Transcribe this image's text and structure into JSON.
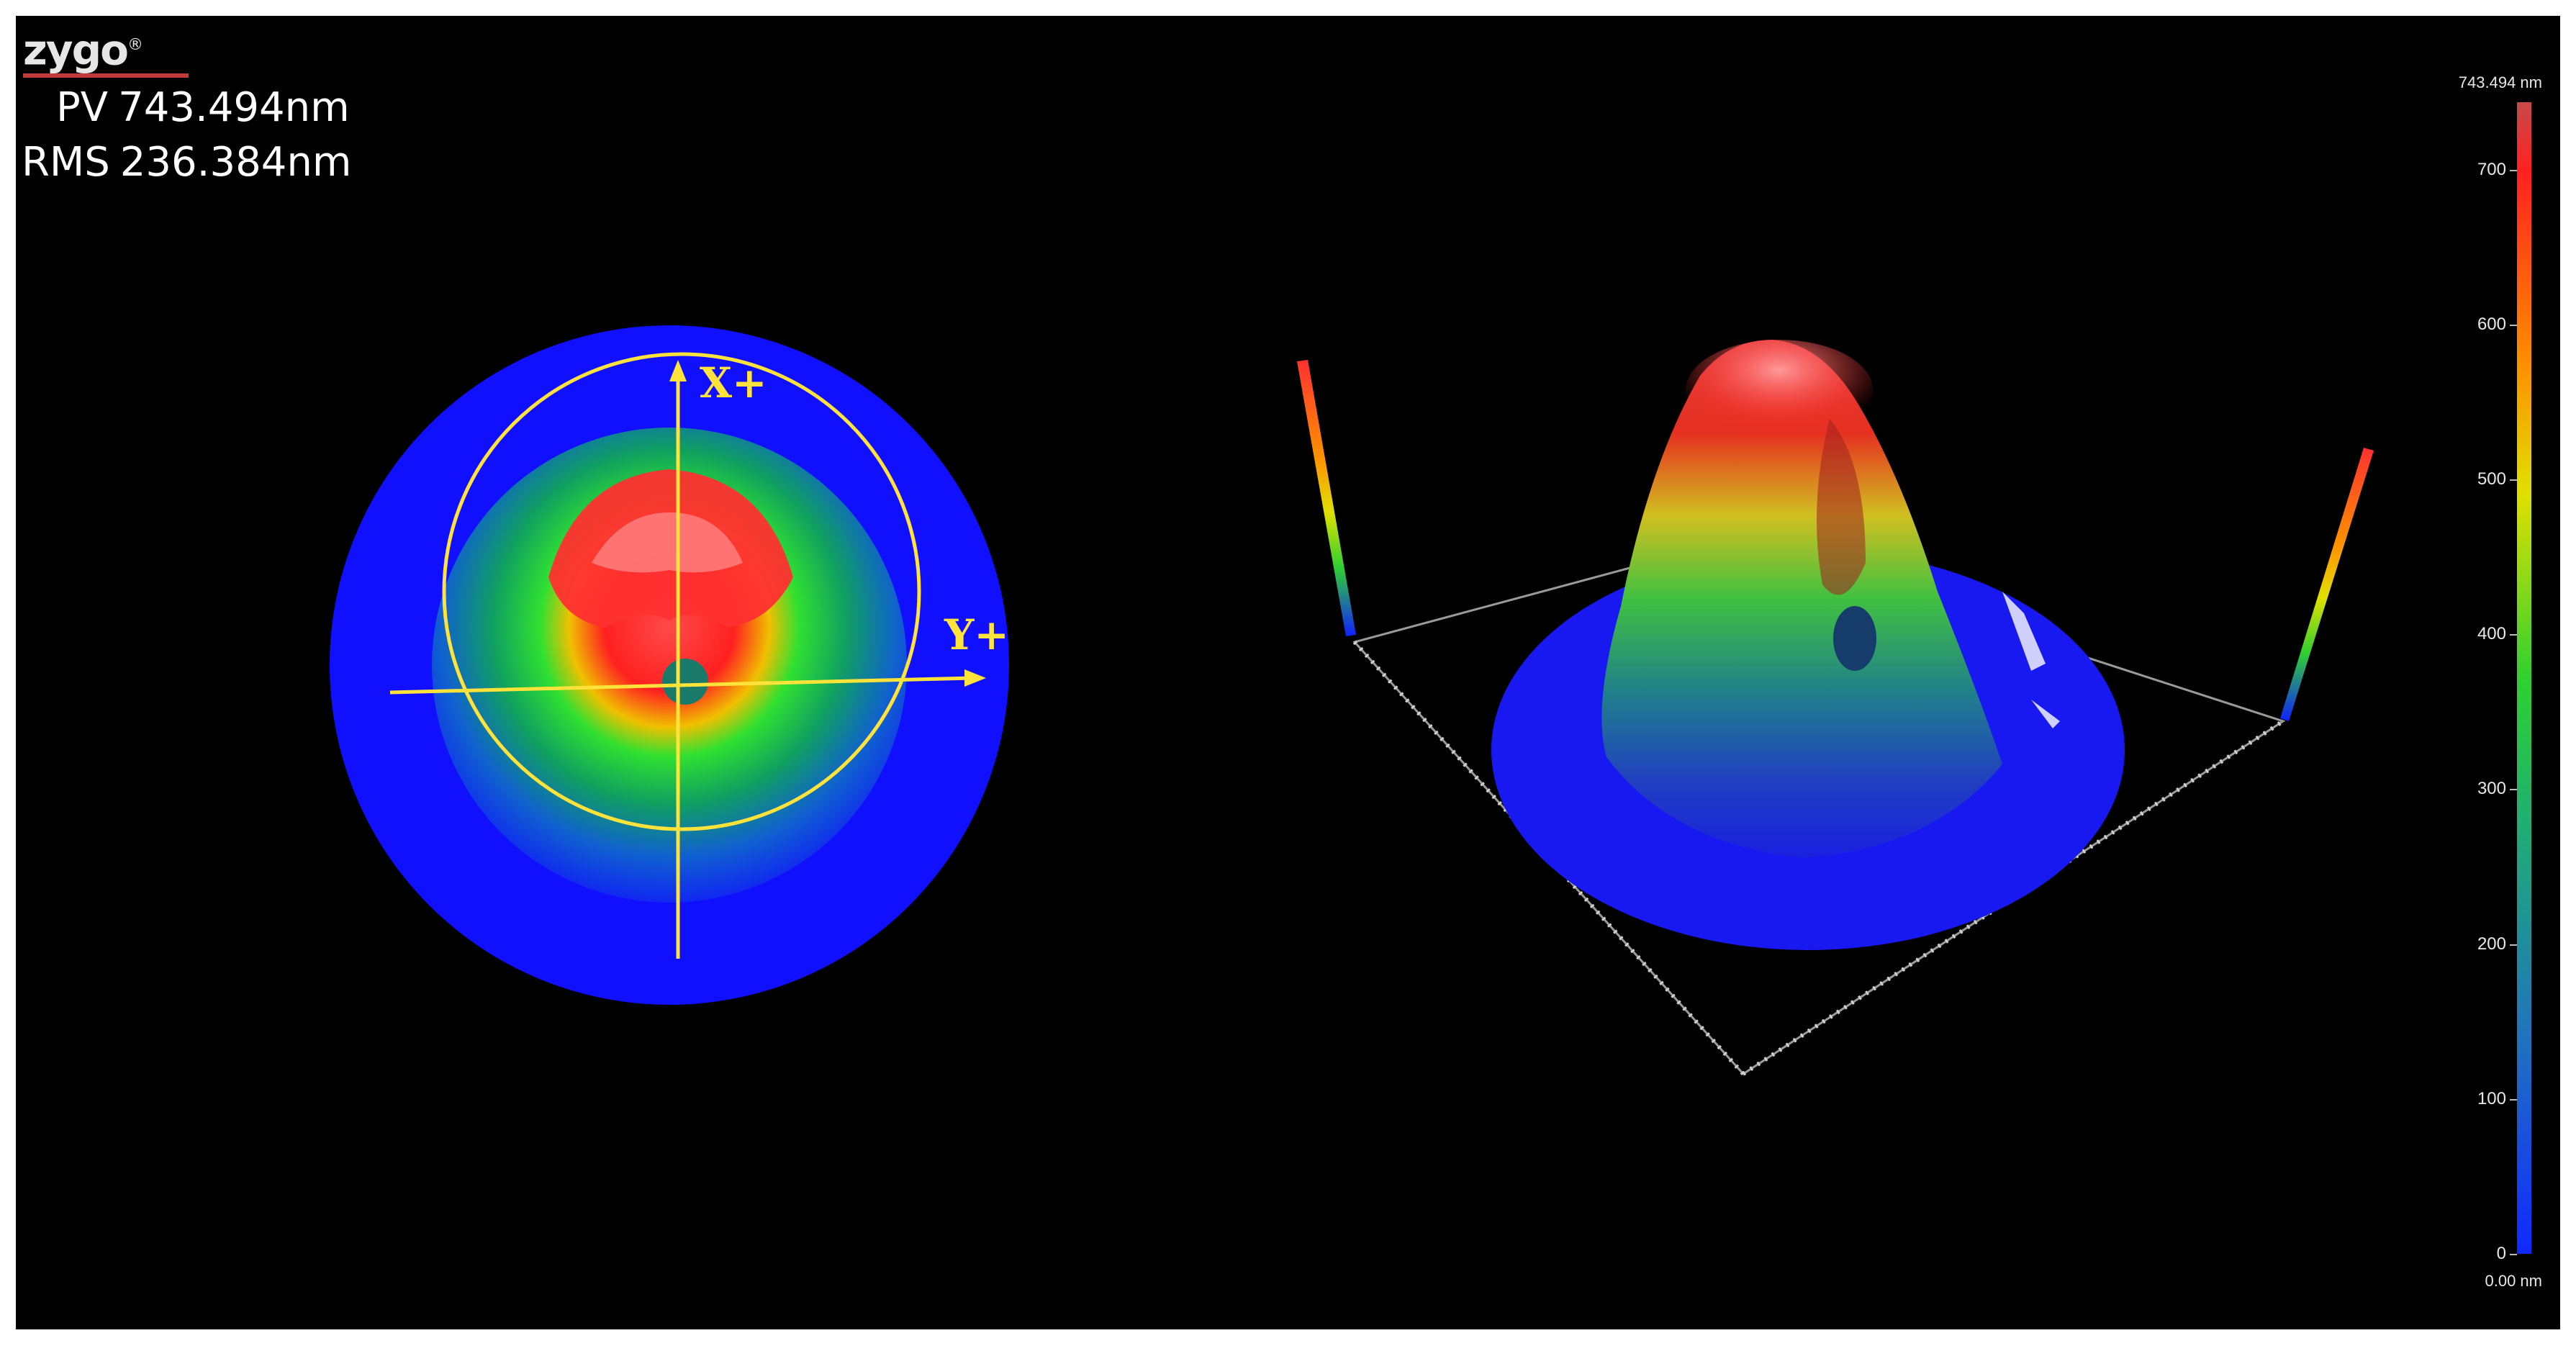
{
  "app": {
    "brand": "zygo",
    "brand_mark": "®"
  },
  "stats": {
    "pv_label": "PV",
    "pv_value": "743.494",
    "pv_unit": "nm",
    "rms_label": "RMS",
    "rms_value": "236.384",
    "rms_unit": "nm"
  },
  "map2d": {
    "x_axis_label": "X+",
    "y_axis_label": "Y+",
    "overlay_color": "#ffe23a",
    "background_color": "#1010ff"
  },
  "colorbar": {
    "max_label": "743.494 nm",
    "min_label": "0.00 nm",
    "ticks": [
      "700",
      "600",
      "500",
      "400",
      "300",
      "200",
      "100",
      "0"
    ],
    "tick_values": [
      700,
      600,
      500,
      400,
      300,
      200,
      100,
      0
    ],
    "range": [
      0,
      743.494
    ],
    "colors": [
      "#ff2020",
      "#ff8a00",
      "#e0e000",
      "#30d030",
      "#2070c0",
      "#1028ff"
    ]
  }
}
